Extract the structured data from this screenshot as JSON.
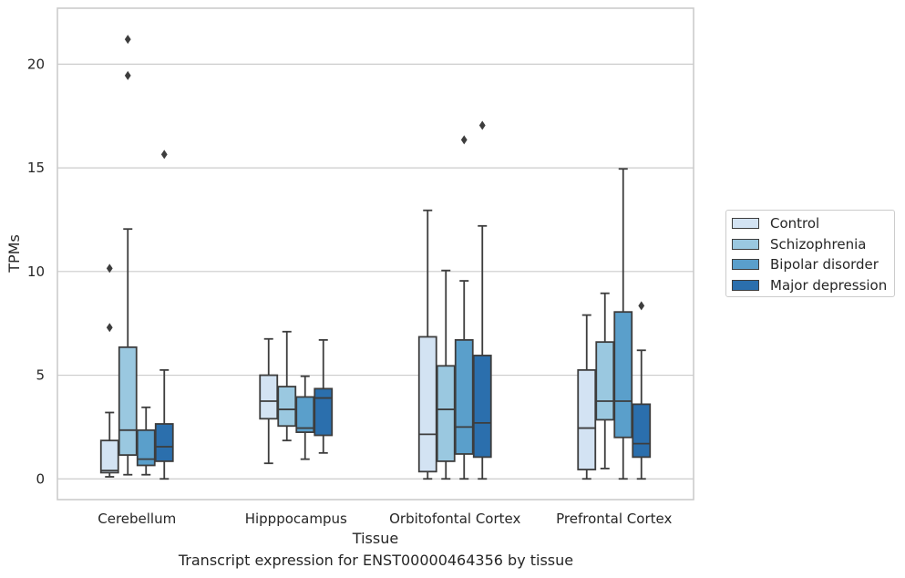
{
  "chart_data": {
    "type": "box",
    "xlabel": "Tissue",
    "ylabel": "TPMs",
    "caption": "Transcript expression for ENST00000464356 by tissue",
    "categories": [
      "Cerebellum",
      "Hipppocampus",
      "Orbitofontal Cortex",
      "Prefrontal Cortex"
    ],
    "ylim": [
      -1,
      22.7
    ],
    "yticks": [
      0,
      5,
      10,
      15,
      20
    ],
    "grid": true,
    "legend_position": "right",
    "series": [
      {
        "name": "Control",
        "color": "#d3e3f3",
        "boxes": [
          {
            "whislo": 0.1,
            "q1": 0.3,
            "med": 0.4,
            "q3": 1.85,
            "whishi": 3.2,
            "fliers": [
              7.3,
              10.15
            ]
          },
          {
            "whislo": 0.75,
            "q1": 2.9,
            "med": 3.75,
            "q3": 5.0,
            "whishi": 6.75,
            "fliers": []
          },
          {
            "whislo": 0.0,
            "q1": 0.35,
            "med": 2.15,
            "q3": 6.85,
            "whishi": 12.95,
            "fliers": []
          },
          {
            "whislo": 0.0,
            "q1": 0.45,
            "med": 2.45,
            "q3": 5.25,
            "whishi": 7.9,
            "fliers": []
          }
        ]
      },
      {
        "name": "Schizophrenia",
        "color": "#9ac8e0",
        "boxes": [
          {
            "whislo": 0.2,
            "q1": 1.15,
            "med": 2.35,
            "q3": 6.35,
            "whishi": 12.05,
            "fliers": [
              19.45,
              21.2
            ]
          },
          {
            "whislo": 1.85,
            "q1": 2.55,
            "med": 3.35,
            "q3": 4.45,
            "whishi": 7.1,
            "fliers": []
          },
          {
            "whislo": 0.0,
            "q1": 0.85,
            "med": 3.35,
            "q3": 5.45,
            "whishi": 10.05,
            "fliers": []
          },
          {
            "whislo": 0.5,
            "q1": 2.85,
            "med": 3.75,
            "q3": 6.6,
            "whishi": 8.95,
            "fliers": []
          }
        ]
      },
      {
        "name": "Bipolar disorder",
        "color": "#5a9fcb",
        "boxes": [
          {
            "whislo": 0.2,
            "q1": 0.65,
            "med": 0.95,
            "q3": 2.35,
            "whishi": 3.45,
            "fliers": []
          },
          {
            "whislo": 0.95,
            "q1": 2.25,
            "med": 2.45,
            "q3": 3.95,
            "whishi": 4.95,
            "fliers": []
          },
          {
            "whislo": 0.0,
            "q1": 1.2,
            "med": 2.5,
            "q3": 6.7,
            "whishi": 9.55,
            "fliers": [
              16.35
            ]
          },
          {
            "whislo": 0.0,
            "q1": 2.0,
            "med": 3.75,
            "q3": 8.05,
            "whishi": 14.95,
            "fliers": []
          }
        ]
      },
      {
        "name": "Major depression",
        "color": "#2b6fad",
        "boxes": [
          {
            "whislo": 0.0,
            "q1": 0.85,
            "med": 1.55,
            "q3": 2.65,
            "whishi": 5.25,
            "fliers": [
              15.65
            ]
          },
          {
            "whislo": 1.25,
            "q1": 2.1,
            "med": 3.9,
            "q3": 4.35,
            "whishi": 6.7,
            "fliers": []
          },
          {
            "whislo": 0.0,
            "q1": 1.05,
            "med": 2.7,
            "q3": 5.95,
            "whishi": 12.2,
            "fliers": [
              17.05
            ]
          },
          {
            "whislo": 0.0,
            "q1": 1.05,
            "med": 1.7,
            "q3": 3.6,
            "whishi": 6.2,
            "fliers": [
              8.35
            ]
          }
        ]
      }
    ]
  }
}
